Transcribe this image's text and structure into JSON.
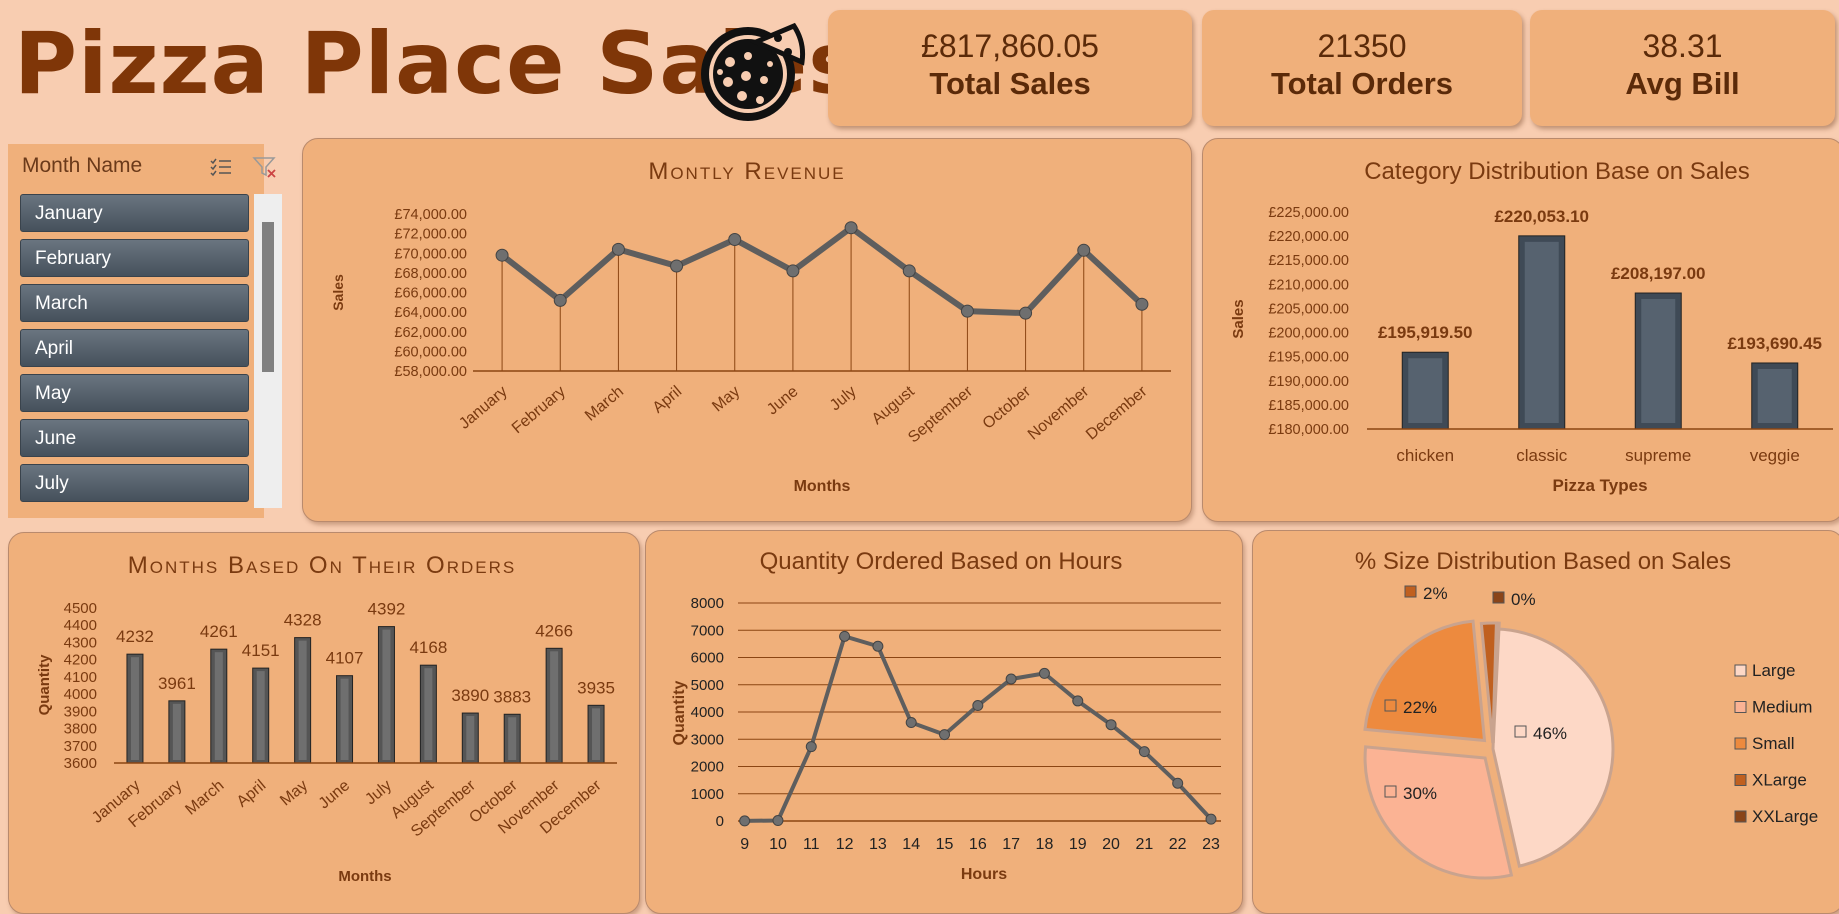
{
  "header": {
    "title": "Pizza Place Sales"
  },
  "kpis": [
    {
      "value": "£817,860.05",
      "label": "Total Sales"
    },
    {
      "value": "21350",
      "label": "Total Orders"
    },
    {
      "value": "38.31",
      "label": "Avg Bill"
    }
  ],
  "slicer": {
    "title": "Month Name",
    "items": [
      "January",
      "February",
      "March",
      "April",
      "May",
      "June",
      "July"
    ]
  },
  "colors": {
    "accent": "#7f3608",
    "panel": "#f0b07b",
    "background": "#f8cdb1",
    "line": "#666666",
    "bar": "#3f4a56"
  },
  "chart_data": [
    {
      "id": "monthly_revenue",
      "type": "line",
      "title": "Montly Revenue",
      "xlabel": "Months",
      "ylabel": "Sales",
      "categories": [
        "January",
        "February",
        "March",
        "April",
        "May",
        "June",
        "July",
        "August",
        "September",
        "October",
        "November",
        "December"
      ],
      "values": [
        69800,
        65200,
        70400,
        68700,
        71400,
        68200,
        72600,
        68200,
        64100,
        63900,
        70300,
        64800
      ],
      "ylim": [
        58000,
        74000
      ],
      "yticks": [
        "£58,000.00",
        "£60,000.00",
        "£62,000.00",
        "£64,000.00",
        "£66,000.00",
        "£68,000.00",
        "£70,000.00",
        "£72,000.00",
        "£74,000.00"
      ]
    },
    {
      "id": "category_distribution",
      "type": "bar",
      "title": "Category Distribution Base on Sales",
      "xlabel": "Pizza Types",
      "ylabel": "Sales",
      "categories": [
        "chicken",
        "classic",
        "supreme",
        "veggie"
      ],
      "values": [
        195919.5,
        220053.1,
        208197.0,
        193690.45
      ],
      "data_labels": [
        "£195,919.50",
        "£220,053.10",
        "£208,197.00",
        "£193,690.45"
      ],
      "ylim": [
        180000,
        225000
      ],
      "yticks": [
        "£180,000.00",
        "£185,000.00",
        "£190,000.00",
        "£195,000.00",
        "£200,000.00",
        "£205,000.00",
        "£210,000.00",
        "£215,000.00",
        "£220,000.00",
        "£225,000.00"
      ]
    },
    {
      "id": "months_orders",
      "type": "bar",
      "title": "Months Based On Their Orders",
      "xlabel": "Months",
      "ylabel": "Quantity",
      "categories": [
        "January",
        "February",
        "March",
        "April",
        "May",
        "June",
        "July",
        "August",
        "September",
        "October",
        "November",
        "December"
      ],
      "values": [
        4232,
        3961,
        4261,
        4151,
        4328,
        4107,
        4392,
        4168,
        3890,
        3883,
        4266,
        3935
      ],
      "data_labels": [
        "4232",
        "3961",
        "4261",
        "4151",
        "4328",
        "4107",
        "4392",
        "4168",
        "3890",
        "3883",
        "4266",
        "3935"
      ],
      "ylim": [
        3600,
        4500
      ],
      "yticks": [
        "3600",
        "3700",
        "3800",
        "3900",
        "4000",
        "4100",
        "4200",
        "4300",
        "4400",
        "4500"
      ]
    },
    {
      "id": "hourly_quantity",
      "type": "line",
      "title": "Quantity Ordered Based on Hours",
      "xlabel": "Hours",
      "ylabel": "Quantity",
      "categories": [
        "9",
        "10",
        "11",
        "12",
        "13",
        "14",
        "15",
        "16",
        "17",
        "18",
        "19",
        "20",
        "21",
        "22",
        "23"
      ],
      "values": [
        4,
        18,
        2728,
        6776,
        6413,
        3613,
        3170,
        4237,
        5211,
        5417,
        4406,
        3534,
        2545,
        1386,
        68
      ],
      "ylim": [
        0,
        8000
      ],
      "yticks": [
        "0",
        "1000",
        "2000",
        "3000",
        "4000",
        "5000",
        "6000",
        "7000",
        "8000"
      ],
      "grid": true
    },
    {
      "id": "size_distribution",
      "type": "pie",
      "title": "% Size Distribution Based on Sales",
      "categories": [
        "Large",
        "Medium",
        "Small",
        "XLarge",
        "XXLarge"
      ],
      "values": [
        46,
        30,
        22,
        2,
        0
      ],
      "data_labels": [
        "46%",
        "30%",
        "22%",
        "2%",
        "0%"
      ],
      "colors": [
        "#fdd8c6",
        "#fbb394",
        "#ed8a3e",
        "#c0601f",
        "#8a4418"
      ],
      "legend": "right"
    }
  ]
}
